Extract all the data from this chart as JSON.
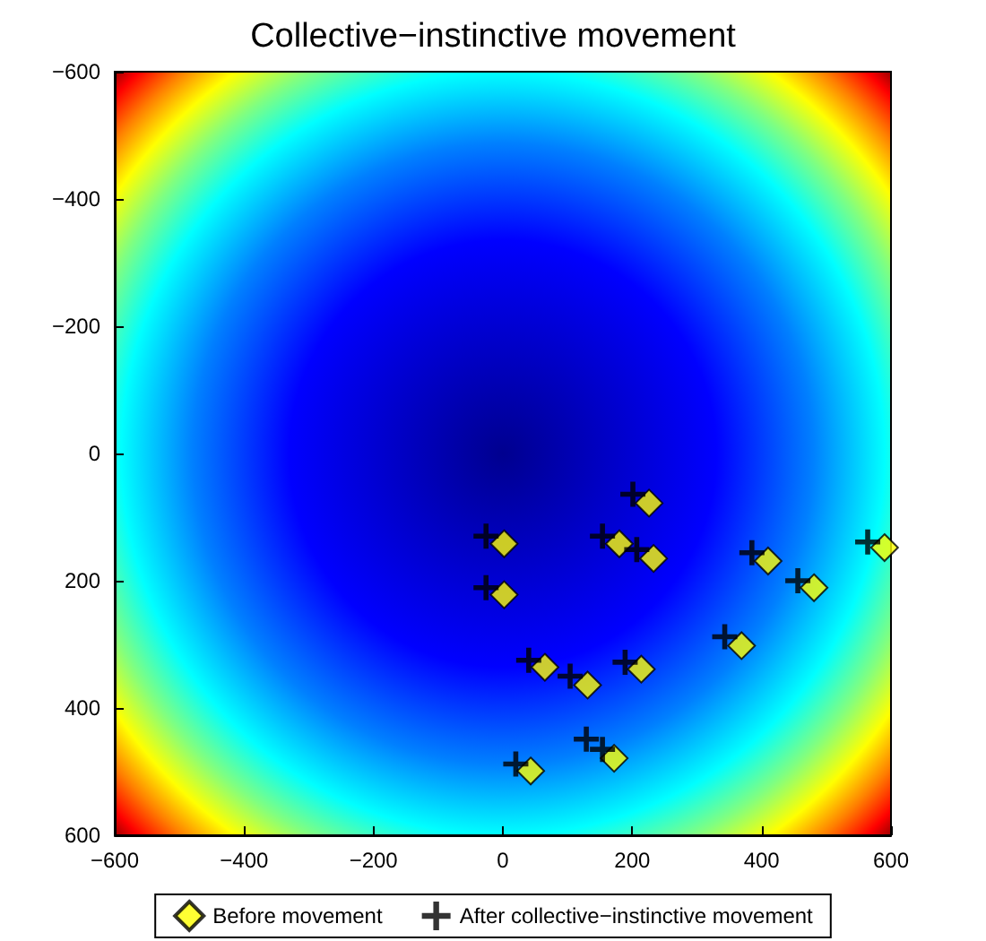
{
  "chart_data": {
    "type": "scatter",
    "title": "Collective−instinctive movement",
    "xlim": [
      -600,
      600
    ],
    "xticks": [
      -600,
      -400,
      -200,
      0,
      200,
      400,
      600
    ],
    "ylim": [
      600,
      -600
    ],
    "yticks": [
      -600,
      -400,
      -200,
      0,
      200,
      400,
      600
    ],
    "grid": false,
    "legend": "bottom",
    "series": [
      {
        "name": "Before movement",
        "color": "#ffff00",
        "marker": "diamond",
        "x": [
          226,
          2,
          180,
          233,
          410,
          590,
          481,
          2,
          369,
          65,
          214,
          131,
          172,
          43
        ],
        "values": [
          78,
          142,
          142,
          165,
          169,
          148,
          211,
          222,
          302,
          336,
          339,
          364,
          479,
          499
        ]
      },
      {
        "name": "After collective−instinctive movement",
        "color": "#000000",
        "marker": "cross",
        "x": [
          201,
          -26,
          154,
          207,
          385,
          564,
          456,
          -26,
          343,
          40,
          189,
          104,
          129,
          154,
          20
        ],
        "values": [
          64,
          130,
          130,
          151,
          156,
          139,
          200,
          211,
          288,
          325,
          328,
          350,
          449,
          465,
          488
        ]
      }
    ]
  }
}
